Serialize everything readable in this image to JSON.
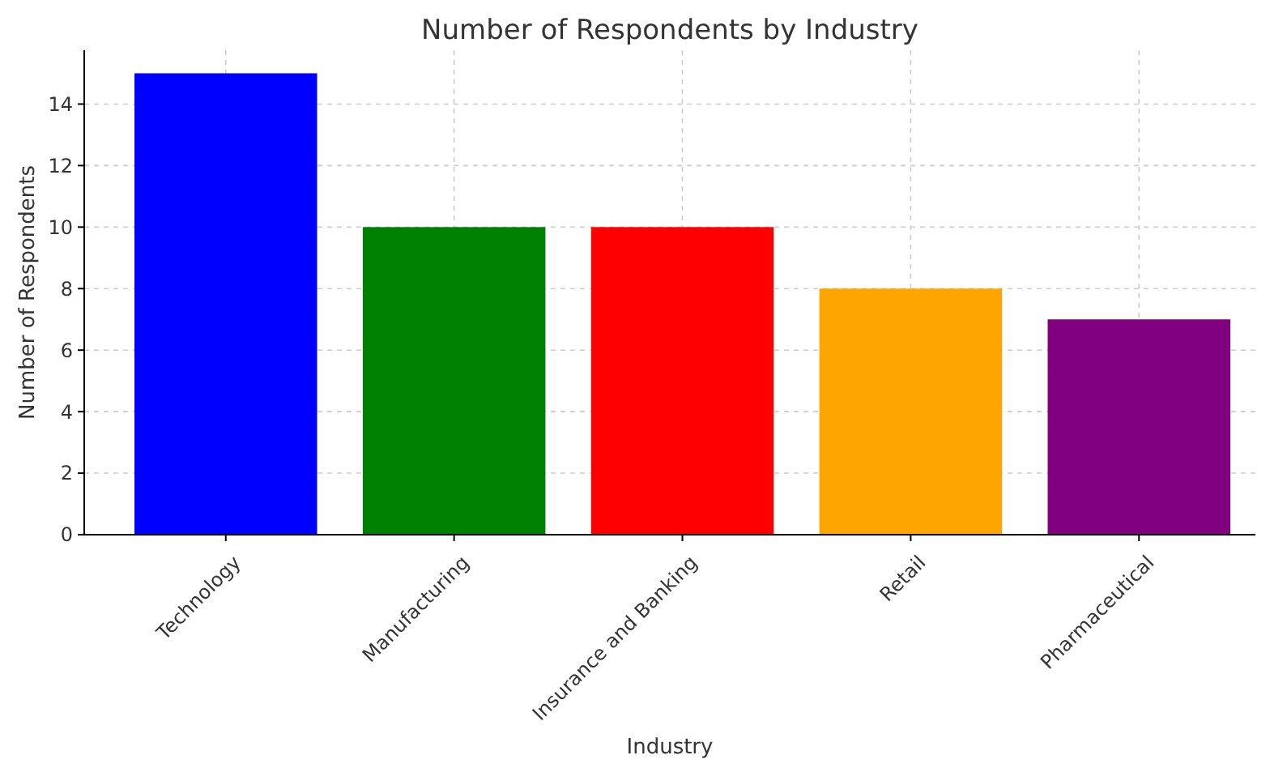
{
  "chart_data": {
    "type": "bar",
    "title": "Number of Respondents by Industry",
    "xlabel": "Industry",
    "ylabel": "Number of Respondents",
    "categories": [
      "Technology",
      "Manufacturing",
      "Insurance and Banking",
      "Retail",
      "Pharmaceutical"
    ],
    "values": [
      15,
      10,
      10,
      8,
      7
    ],
    "colors": [
      "#0000ff",
      "#008000",
      "#ff0000",
      "#ffa500",
      "#800080"
    ],
    "ylim": [
      0,
      15.75
    ],
    "yticks": [
      0,
      2,
      4,
      6,
      8,
      10,
      12,
      14
    ],
    "grid": true
  }
}
